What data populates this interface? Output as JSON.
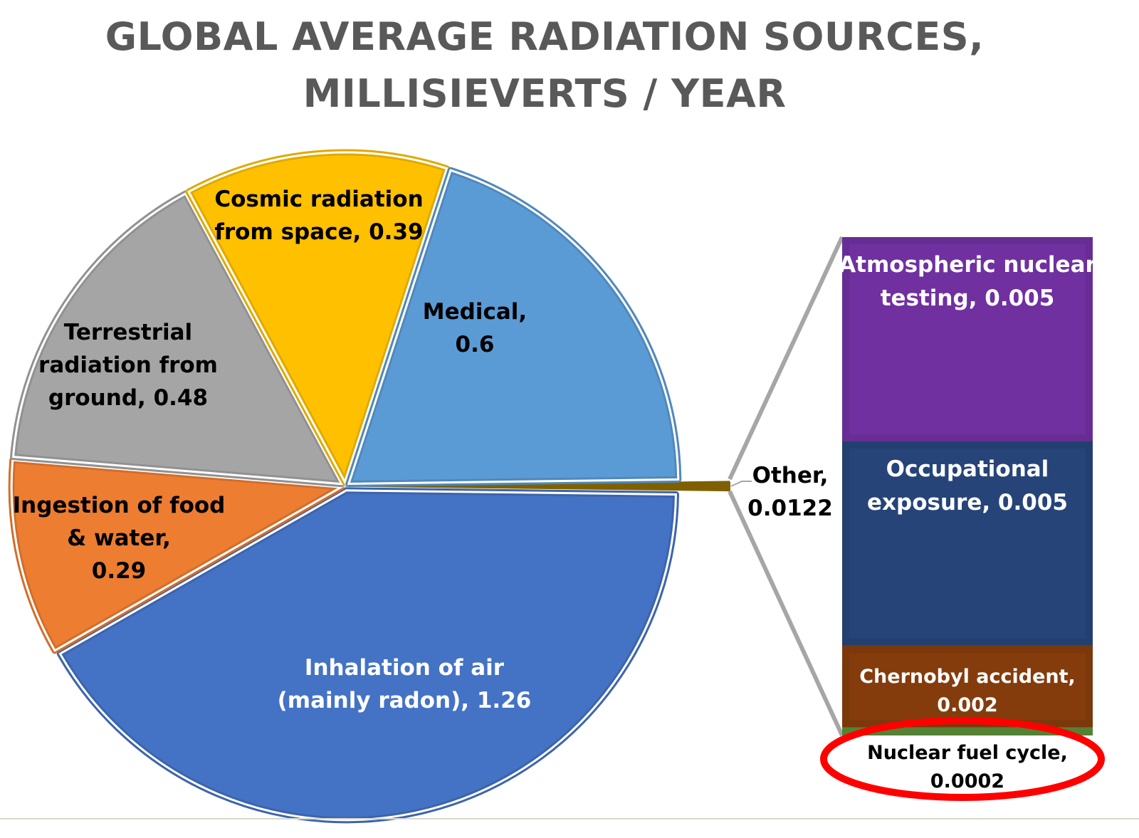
{
  "chart_data": {
    "type": "pie",
    "subtype": "bar-of-pie",
    "title_lines": [
      "GLOBAL AVERAGE RADIATION SOURCES,",
      "MILLISIEVERTS / YEAR"
    ],
    "units": "millisieverts / year",
    "pie": [
      {
        "label_lines": [
          "Other,",
          "0.0122"
        ],
        "name": "Other",
        "value": 0.0122,
        "color": "#7f6000",
        "text_color": "#000000"
      },
      {
        "label_lines": [
          "Inhalation of air",
          "(mainly radon), 1.26"
        ],
        "name": "Inhalation of air (mainly radon)",
        "value": 1.26,
        "color": "#4472c4",
        "text_color": "#ffffff"
      },
      {
        "label_lines": [
          "Ingestion of food",
          "& water,",
          "0.29"
        ],
        "name": "Ingestion of food & water",
        "value": 0.29,
        "color": "#ed7d31",
        "text_color": "#000000"
      },
      {
        "label_lines": [
          "Terrestrial",
          "radiation from",
          "ground, 0.48"
        ],
        "name": "Terrestrial radiation from ground",
        "value": 0.48,
        "color": "#a5a5a5",
        "text_color": "#000000"
      },
      {
        "label_lines": [
          "Cosmic radiation",
          "from space, 0.39"
        ],
        "name": "Cosmic radiation from space",
        "value": 0.39,
        "color": "#ffc000",
        "text_color": "#000000"
      },
      {
        "label_lines": [
          "Medical,",
          "0.6"
        ],
        "name": "Medical",
        "value": 0.6,
        "color": "#5b9bd5",
        "text_color": "#000000"
      }
    ],
    "bar": [
      {
        "label_lines": [
          "Atmospheric nuclear",
          "testing, 0.005"
        ],
        "name": "Atmospheric nuclear testing",
        "value": 0.005,
        "color": "#7030a0",
        "text_color": "#ffffff"
      },
      {
        "label_lines": [
          "Occupational",
          "exposure, 0.005"
        ],
        "name": "Occupational exposure",
        "value": 0.005,
        "color": "#264478",
        "text_color": "#ffffff"
      },
      {
        "label_lines": [
          "Chernobyl accident,",
          "0.002"
        ],
        "name": "Chernobyl accident",
        "value": 0.002,
        "color": "#843c0c",
        "text_color": "#ffffff"
      },
      {
        "label_lines": [
          "Nuclear fuel cycle,",
          "0.0002"
        ],
        "name": "Nuclear fuel cycle",
        "value": 0.0002,
        "color": "#548235",
        "text_color": "#000000"
      }
    ],
    "annotation": {
      "type": "ellipse",
      "highlights": "Nuclear fuel cycle",
      "color": "#ff0000"
    },
    "connector_color": "#a6a6a6"
  }
}
